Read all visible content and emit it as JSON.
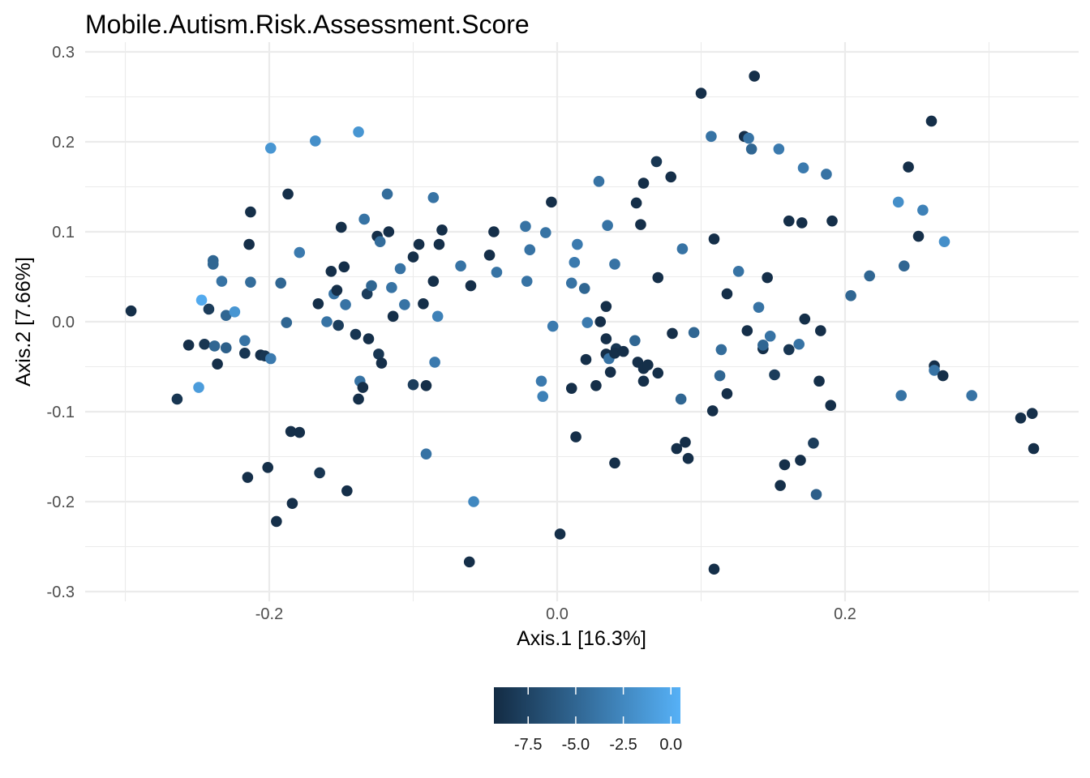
{
  "chart_data": {
    "type": "scatter",
    "title": "Mobile.Autism.Risk.Assessment.Score",
    "xlabel": "Axis.1 [16.3%]",
    "ylabel": "Axis.2 [7.66%]",
    "xlim": [
      -0.325,
      0.36
    ],
    "ylim": [
      -0.31,
      0.3
    ],
    "x_ticks": [
      -0.2,
      0.0,
      0.2
    ],
    "x_tick_labels": [
      "-0.2",
      "0.0",
      "0.2"
    ],
    "y_ticks": [
      -0.3,
      -0.2,
      -0.1,
      0.0,
      0.1,
      0.2,
      0.3
    ],
    "y_tick_labels": [
      "-0.3",
      "-0.2",
      "-0.1",
      "0.0",
      "0.1",
      "0.2",
      "0.3"
    ],
    "grid": true,
    "legend": {
      "position": "bottom",
      "type": "colorbar",
      "range": [
        -9.3,
        0.5
      ],
      "breaks": [
        -7.5,
        -5.0,
        -2.5,
        0.0
      ],
      "break_labels": [
        "-7.5",
        "-5.0",
        "-2.5",
        "0.0"
      ],
      "low_color": "#132B43",
      "high_color": "#56B1F7"
    },
    "points": [
      {
        "x": -0.296,
        "y": 0.012,
        "c": -9
      },
      {
        "x": -0.264,
        "y": -0.086,
        "c": -8.5
      },
      {
        "x": -0.256,
        "y": -0.026,
        "c": -9
      },
      {
        "x": -0.247,
        "y": 0.024,
        "c": 0
      },
      {
        "x": -0.249,
        "y": -0.073,
        "c": -1
      },
      {
        "x": -0.245,
        "y": -0.025,
        "c": -8.5
      },
      {
        "x": -0.242,
        "y": 0.014,
        "c": -8
      },
      {
        "x": -0.239,
        "y": 0.068,
        "c": -5
      },
      {
        "x": -0.239,
        "y": 0.064,
        "c": -5
      },
      {
        "x": -0.238,
        "y": -0.027,
        "c": -5
      },
      {
        "x": -0.236,
        "y": -0.047,
        "c": -9
      },
      {
        "x": -0.233,
        "y": 0.045,
        "c": -4
      },
      {
        "x": -0.23,
        "y": 0.007,
        "c": -5
      },
      {
        "x": -0.23,
        "y": -0.029,
        "c": -5.5
      },
      {
        "x": -0.224,
        "y": 0.011,
        "c": -1.5
      },
      {
        "x": -0.217,
        "y": -0.021,
        "c": -4
      },
      {
        "x": -0.217,
        "y": -0.035,
        "c": -8.5
      },
      {
        "x": -0.215,
        "y": -0.173,
        "c": -9
      },
      {
        "x": -0.214,
        "y": 0.086,
        "c": -9
      },
      {
        "x": -0.213,
        "y": 0.122,
        "c": -9
      },
      {
        "x": -0.213,
        "y": 0.044,
        "c": -4.5
      },
      {
        "x": -0.206,
        "y": -0.037,
        "c": -9
      },
      {
        "x": -0.203,
        "y": -0.038,
        "c": -8.5
      },
      {
        "x": -0.199,
        "y": 0.193,
        "c": -1.5
      },
      {
        "x": -0.199,
        "y": -0.041,
        "c": -3.5
      },
      {
        "x": -0.201,
        "y": -0.162,
        "c": -9
      },
      {
        "x": -0.195,
        "y": -0.222,
        "c": -9
      },
      {
        "x": -0.192,
        "y": 0.043,
        "c": -5
      },
      {
        "x": -0.188,
        "y": -0.001,
        "c": -5
      },
      {
        "x": -0.187,
        "y": 0.142,
        "c": -9
      },
      {
        "x": -0.185,
        "y": -0.122,
        "c": -9
      },
      {
        "x": -0.184,
        "y": -0.202,
        "c": -9
      },
      {
        "x": -0.179,
        "y": -0.123,
        "c": -9
      },
      {
        "x": -0.179,
        "y": 0.077,
        "c": -3.5
      },
      {
        "x": -0.166,
        "y": 0.02,
        "c": -9
      },
      {
        "x": -0.165,
        "y": -0.168,
        "c": -8.5
      },
      {
        "x": -0.168,
        "y": 0.201,
        "c": -2
      },
      {
        "x": -0.16,
        "y": 0.0,
        "c": -4
      },
      {
        "x": -0.157,
        "y": 0.056,
        "c": -9
      },
      {
        "x": -0.155,
        "y": 0.031,
        "c": -4
      },
      {
        "x": -0.153,
        "y": 0.035,
        "c": -9
      },
      {
        "x": -0.152,
        "y": -0.004,
        "c": -8
      },
      {
        "x": -0.15,
        "y": 0.105,
        "c": -9
      },
      {
        "x": -0.148,
        "y": 0.061,
        "c": -9
      },
      {
        "x": -0.147,
        "y": 0.019,
        "c": -4
      },
      {
        "x": -0.146,
        "y": -0.188,
        "c": -9
      },
      {
        "x": -0.14,
        "y": -0.014,
        "c": -8.5
      },
      {
        "x": -0.138,
        "y": 0.211,
        "c": -1.5
      },
      {
        "x": -0.137,
        "y": -0.066,
        "c": -4
      },
      {
        "x": -0.138,
        "y": -0.086,
        "c": -9
      },
      {
        "x": -0.134,
        "y": 0.114,
        "c": -4
      },
      {
        "x": -0.135,
        "y": -0.073,
        "c": -9
      },
      {
        "x": -0.132,
        "y": 0.031,
        "c": -8
      },
      {
        "x": -0.131,
        "y": -0.019,
        "c": -9
      },
      {
        "x": -0.129,
        "y": 0.04,
        "c": -5
      },
      {
        "x": -0.125,
        "y": 0.095,
        "c": -9
      },
      {
        "x": -0.123,
        "y": 0.089,
        "c": -4.5
      },
      {
        "x": -0.124,
        "y": -0.036,
        "c": -8.5
      },
      {
        "x": -0.122,
        "y": -0.046,
        "c": -9
      },
      {
        "x": -0.118,
        "y": 0.142,
        "c": -4.5
      },
      {
        "x": -0.117,
        "y": 0.1,
        "c": -9
      },
      {
        "x": -0.115,
        "y": 0.038,
        "c": -4
      },
      {
        "x": -0.114,
        "y": 0.006,
        "c": -9
      },
      {
        "x": -0.109,
        "y": 0.059,
        "c": -4
      },
      {
        "x": -0.106,
        "y": 0.019,
        "c": -4
      },
      {
        "x": -0.1,
        "y": 0.072,
        "c": -9
      },
      {
        "x": -0.1,
        "y": -0.07,
        "c": -8
      },
      {
        "x": -0.096,
        "y": 0.086,
        "c": -9
      },
      {
        "x": -0.093,
        "y": 0.02,
        "c": -9
      },
      {
        "x": -0.091,
        "y": -0.071,
        "c": -9
      },
      {
        "x": -0.091,
        "y": -0.147,
        "c": -4
      },
      {
        "x": -0.086,
        "y": 0.138,
        "c": -4
      },
      {
        "x": -0.086,
        "y": 0.045,
        "c": -9
      },
      {
        "x": -0.085,
        "y": -0.045,
        "c": -3.5
      },
      {
        "x": -0.083,
        "y": 0.006,
        "c": -3
      },
      {
        "x": -0.082,
        "y": 0.086,
        "c": -9
      },
      {
        "x": -0.08,
        "y": 0.102,
        "c": -9
      },
      {
        "x": -0.067,
        "y": 0.062,
        "c": -4
      },
      {
        "x": -0.061,
        "y": -0.267,
        "c": -9
      },
      {
        "x": -0.06,
        "y": 0.04,
        "c": -9
      },
      {
        "x": -0.058,
        "y": -0.2,
        "c": -2.5
      },
      {
        "x": -0.047,
        "y": 0.074,
        "c": -9
      },
      {
        "x": -0.044,
        "y": 0.1,
        "c": -9
      },
      {
        "x": -0.042,
        "y": 0.055,
        "c": -4
      },
      {
        "x": -0.022,
        "y": 0.106,
        "c": -4
      },
      {
        "x": -0.021,
        "y": 0.045,
        "c": -4
      },
      {
        "x": -0.019,
        "y": 0.08,
        "c": -4
      },
      {
        "x": -0.011,
        "y": -0.066,
        "c": -3.5
      },
      {
        "x": -0.01,
        "y": -0.083,
        "c": -3
      },
      {
        "x": -0.008,
        "y": 0.099,
        "c": -4
      },
      {
        "x": -0.004,
        "y": 0.133,
        "c": -9
      },
      {
        "x": -0.003,
        "y": -0.005,
        "c": -3.5
      },
      {
        "x": 0.002,
        "y": -0.236,
        "c": -9
      },
      {
        "x": 0.01,
        "y": 0.043,
        "c": -4
      },
      {
        "x": 0.01,
        "y": -0.074,
        "c": -9
      },
      {
        "x": 0.012,
        "y": 0.066,
        "c": -3.5
      },
      {
        "x": 0.013,
        "y": -0.128,
        "c": -9
      },
      {
        "x": 0.014,
        "y": 0.086,
        "c": -3.5
      },
      {
        "x": 0.019,
        "y": 0.037,
        "c": -5
      },
      {
        "x": 0.021,
        "y": -0.001,
        "c": -3.5
      },
      {
        "x": 0.02,
        "y": -0.042,
        "c": -9
      },
      {
        "x": 0.027,
        "y": -0.071,
        "c": -9
      },
      {
        "x": 0.029,
        "y": 0.156,
        "c": -4
      },
      {
        "x": 0.03,
        "y": 0.0,
        "c": -9
      },
      {
        "x": 0.034,
        "y": 0.017,
        "c": -9
      },
      {
        "x": 0.034,
        "y": -0.019,
        "c": -9
      },
      {
        "x": 0.034,
        "y": -0.036,
        "c": -9
      },
      {
        "x": 0.035,
        "y": 0.107,
        "c": -4
      },
      {
        "x": 0.036,
        "y": -0.041,
        "c": -4
      },
      {
        "x": 0.037,
        "y": -0.056,
        "c": -9
      },
      {
        "x": 0.04,
        "y": 0.064,
        "c": -4
      },
      {
        "x": 0.04,
        "y": -0.157,
        "c": -9
      },
      {
        "x": 0.041,
        "y": -0.03,
        "c": -8.5
      },
      {
        "x": 0.04,
        "y": -0.035,
        "c": -9
      },
      {
        "x": 0.046,
        "y": -0.033,
        "c": -9
      },
      {
        "x": 0.054,
        "y": -0.021,
        "c": -5
      },
      {
        "x": 0.055,
        "y": 0.132,
        "c": -9
      },
      {
        "x": 0.056,
        "y": -0.045,
        "c": -9
      },
      {
        "x": 0.058,
        "y": 0.108,
        "c": -9
      },
      {
        "x": 0.06,
        "y": 0.154,
        "c": -9
      },
      {
        "x": 0.06,
        "y": -0.052,
        "c": -9
      },
      {
        "x": 0.06,
        "y": -0.066,
        "c": -9
      },
      {
        "x": 0.063,
        "y": -0.048,
        "c": -9
      },
      {
        "x": 0.069,
        "y": 0.178,
        "c": -8.5
      },
      {
        "x": 0.07,
        "y": 0.049,
        "c": -9
      },
      {
        "x": 0.07,
        "y": -0.057,
        "c": -9
      },
      {
        "x": 0.079,
        "y": 0.161,
        "c": -9
      },
      {
        "x": 0.08,
        "y": -0.013,
        "c": -9
      },
      {
        "x": 0.083,
        "y": -0.141,
        "c": -9
      },
      {
        "x": 0.086,
        "y": -0.086,
        "c": -5
      },
      {
        "x": 0.087,
        "y": 0.081,
        "c": -4
      },
      {
        "x": 0.089,
        "y": -0.134,
        "c": -9
      },
      {
        "x": 0.091,
        "y": -0.152,
        "c": -9
      },
      {
        "x": 0.095,
        "y": -0.012,
        "c": -5
      },
      {
        "x": 0.1,
        "y": 0.254,
        "c": -9
      },
      {
        "x": 0.107,
        "y": 0.206,
        "c": -4
      },
      {
        "x": 0.108,
        "y": -0.099,
        "c": -9
      },
      {
        "x": 0.109,
        "y": 0.092,
        "c": -9
      },
      {
        "x": 0.109,
        "y": -0.275,
        "c": -9
      },
      {
        "x": 0.113,
        "y": -0.06,
        "c": -5
      },
      {
        "x": 0.114,
        "y": -0.031,
        "c": -4.5
      },
      {
        "x": 0.118,
        "y": 0.031,
        "c": -9
      },
      {
        "x": 0.118,
        "y": -0.08,
        "c": -9
      },
      {
        "x": 0.126,
        "y": 0.056,
        "c": -4
      },
      {
        "x": 0.13,
        "y": 0.206,
        "c": -9
      },
      {
        "x": 0.132,
        "y": -0.01,
        "c": -9
      },
      {
        "x": 0.133,
        "y": 0.204,
        "c": -4
      },
      {
        "x": 0.135,
        "y": 0.192,
        "c": -5
      },
      {
        "x": 0.137,
        "y": 0.273,
        "c": -9
      },
      {
        "x": 0.14,
        "y": 0.016,
        "c": -4
      },
      {
        "x": 0.143,
        "y": -0.03,
        "c": -9
      },
      {
        "x": 0.143,
        "y": -0.026,
        "c": -5
      },
      {
        "x": 0.146,
        "y": 0.049,
        "c": -9
      },
      {
        "x": 0.148,
        "y": -0.016,
        "c": -4
      },
      {
        "x": 0.151,
        "y": -0.059,
        "c": -8
      },
      {
        "x": 0.154,
        "y": 0.192,
        "c": -3.5
      },
      {
        "x": 0.155,
        "y": -0.182,
        "c": -9
      },
      {
        "x": 0.158,
        "y": -0.159,
        "c": -9
      },
      {
        "x": 0.161,
        "y": 0.112,
        "c": -9
      },
      {
        "x": 0.161,
        "y": -0.031,
        "c": -8.5
      },
      {
        "x": 0.168,
        "y": -0.025,
        "c": -4
      },
      {
        "x": 0.169,
        "y": -0.154,
        "c": -9
      },
      {
        "x": 0.17,
        "y": 0.11,
        "c": -9
      },
      {
        "x": 0.171,
        "y": 0.171,
        "c": -3.5
      },
      {
        "x": 0.172,
        "y": 0.003,
        "c": -9
      },
      {
        "x": 0.178,
        "y": -0.135,
        "c": -8
      },
      {
        "x": 0.18,
        "y": -0.192,
        "c": -5.5
      },
      {
        "x": 0.182,
        "y": -0.066,
        "c": -9
      },
      {
        "x": 0.183,
        "y": -0.01,
        "c": -9
      },
      {
        "x": 0.187,
        "y": 0.164,
        "c": -4
      },
      {
        "x": 0.19,
        "y": -0.093,
        "c": -9
      },
      {
        "x": 0.191,
        "y": 0.112,
        "c": -9
      },
      {
        "x": 0.204,
        "y": 0.029,
        "c": -5
      },
      {
        "x": 0.217,
        "y": 0.051,
        "c": -5
      },
      {
        "x": 0.237,
        "y": 0.133,
        "c": -2
      },
      {
        "x": 0.239,
        "y": -0.082,
        "c": -4
      },
      {
        "x": 0.241,
        "y": 0.062,
        "c": -5
      },
      {
        "x": 0.244,
        "y": 0.172,
        "c": -9
      },
      {
        "x": 0.251,
        "y": 0.095,
        "c": -9
      },
      {
        "x": 0.254,
        "y": 0.124,
        "c": -3
      },
      {
        "x": 0.26,
        "y": 0.223,
        "c": -9
      },
      {
        "x": 0.262,
        "y": -0.049,
        "c": -9
      },
      {
        "x": 0.262,
        "y": -0.054,
        "c": -4
      },
      {
        "x": 0.268,
        "y": -0.06,
        "c": -9
      },
      {
        "x": 0.269,
        "y": 0.089,
        "c": -2
      },
      {
        "x": 0.288,
        "y": -0.082,
        "c": -4
      },
      {
        "x": 0.322,
        "y": -0.107,
        "c": -9
      },
      {
        "x": 0.33,
        "y": -0.102,
        "c": -9
      },
      {
        "x": 0.331,
        "y": -0.141,
        "c": -9
      }
    ]
  }
}
